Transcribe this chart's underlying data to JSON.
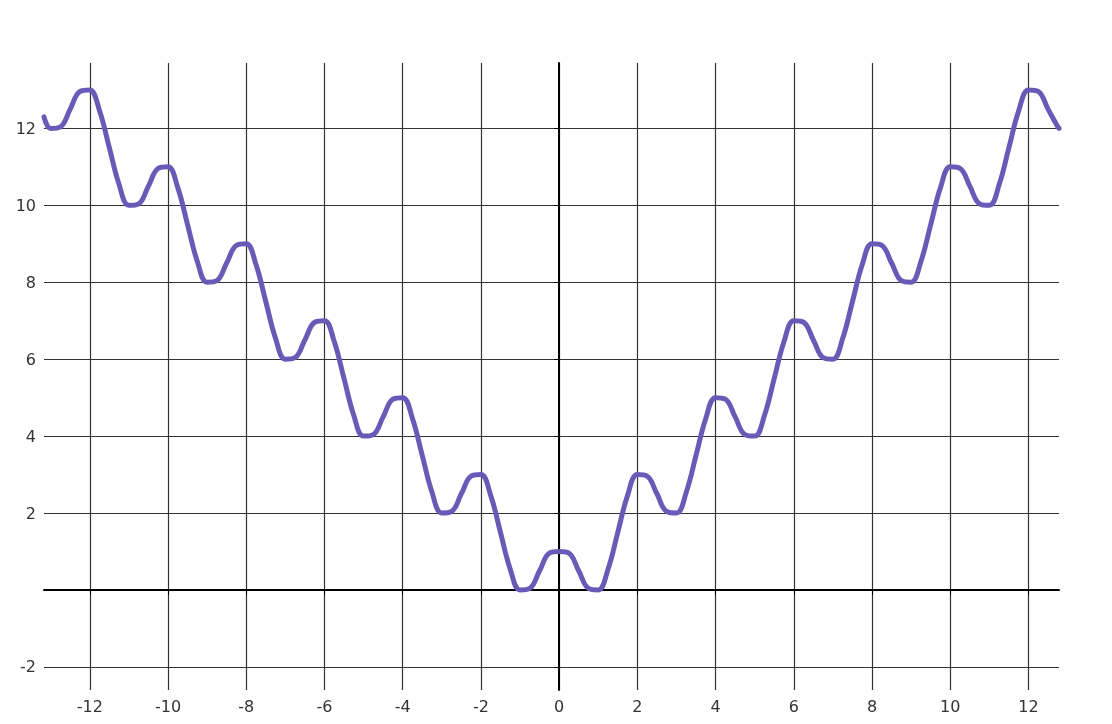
{
  "chart_data": {
    "type": "line",
    "color": "#6a5ab8",
    "line_style": "solid",
    "marker": "none",
    "grid": true,
    "x": [
      -13.17,
      -13,
      -12.75,
      -12.5,
      -12.25,
      -12,
      -11.75,
      -11.5,
      -11.25,
      -11,
      -10.75,
      -10.5,
      -10.25,
      -10,
      -9.75,
      -9.5,
      -9.25,
      -9,
      -8.75,
      -8.5,
      -8.25,
      -8,
      -7.75,
      -7.5,
      -7.25,
      -7,
      -6.75,
      -6.5,
      -6.25,
      -6,
      -5.75,
      -5.5,
      -5.25,
      -5,
      -4.75,
      -4.5,
      -4.25,
      -4,
      -3.75,
      -3.5,
      -3.25,
      -3,
      -2.75,
      -2.5,
      -2.25,
      -2,
      -1.75,
      -1.5,
      -1.25,
      -1,
      -0.75,
      -0.5,
      -0.25,
      0,
      0.25,
      0.5,
      0.75,
      1,
      1.25,
      1.5,
      1.75,
      2,
      2.25,
      2.5,
      2.75,
      3,
      3.25,
      3.5,
      3.75,
      4,
      4.25,
      4.5,
      4.75,
      5,
      5.25,
      5.5,
      5.75,
      6,
      6.25,
      6.5,
      6.75,
      7,
      7.25,
      7.5,
      7.75,
      8,
      8.25,
      8.5,
      8.75,
      9,
      9.25,
      9.5,
      9.75,
      10,
      10.25,
      10.5,
      10.75,
      11,
      11.25,
      11.5,
      11.75,
      12,
      12.25,
      12.5,
      12.75,
      12.78
    ],
    "values": [
      12.3,
      12,
      12.04,
      12.5,
      12.96,
      13,
      12.46,
      11.5,
      10.54,
      10,
      10.04,
      10.5,
      10.96,
      11,
      10.46,
      9.5,
      8.54,
      8,
      8.04,
      8.5,
      8.96,
      9,
      8.46,
      7.5,
      6.54,
      6,
      6.04,
      6.5,
      6.96,
      7,
      6.46,
      5.5,
      4.54,
      4,
      4.04,
      4.5,
      4.96,
      5,
      4.46,
      3.5,
      2.54,
      2,
      2.04,
      2.5,
      2.96,
      3,
      2.46,
      1.5,
      0.54,
      0,
      0.04,
      0.5,
      0.96,
      1,
      0.96,
      0.5,
      0.04,
      0,
      0.54,
      1.5,
      2.46,
      3,
      2.96,
      2.5,
      2.04,
      2,
      2.54,
      3.5,
      4.46,
      5,
      4.96,
      4.5,
      4.04,
      4,
      4.54,
      5.5,
      6.46,
      7,
      6.96,
      6.5,
      6.04,
      6,
      6.54,
      7.5,
      8.46,
      9,
      8.96,
      8.5,
      8.04,
      8,
      8.54,
      9.5,
      10.46,
      11,
      10.96,
      10.5,
      10.04,
      10,
      10.54,
      11.5,
      12.46,
      13,
      12.96,
      12.5,
      12.04,
      12.0
    ],
    "xlim": [
      -13.17,
      12.78
    ],
    "ylim": [
      -2.6,
      13.7
    ],
    "xticks": [
      -12,
      -10,
      -8,
      -6,
      -4,
      -2,
      0,
      2,
      4,
      6,
      8,
      10,
      12
    ],
    "yticks": [
      -2,
      {
        "value": 0,
        "label": null
      },
      2,
      4,
      6,
      8,
      10,
      12
    ]
  }
}
